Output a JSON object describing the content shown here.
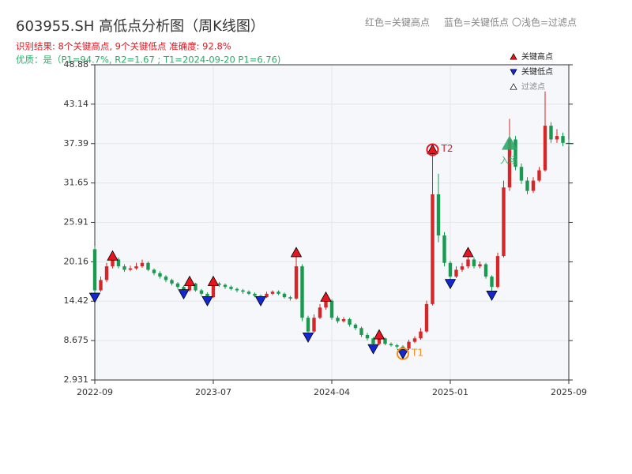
{
  "chart_data": {
    "type": "candlestick",
    "title": "603955.SH 高低点分析图（周K线图）",
    "subtitle": "识别结果: 8个关键高点, 9个关键低点  准确度: 92.8%",
    "quality": "优质：是（P1=94.7%, R2=1.67 ; T1=2024-09-20 P1=6.76)",
    "top_legend": [
      "红色=关键高点",
      "蓝色=关键低点",
      "〇浅色=过滤点"
    ],
    "categories": [
      "2022-09",
      null,
      null,
      null,
      null,
      null,
      null,
      null,
      null,
      null,
      null,
      null,
      null,
      null,
      null,
      null,
      null,
      null,
      null,
      null,
      "2023-07",
      null,
      null,
      null,
      null,
      null,
      null,
      null,
      null,
      null,
      null,
      null,
      null,
      null,
      null,
      null,
      null,
      null,
      null,
      null,
      "2024-04",
      null,
      null,
      null,
      null,
      null,
      null,
      null,
      null,
      null,
      null,
      null,
      null,
      null,
      null,
      null,
      null,
      null,
      null,
      null,
      "2025-01",
      null,
      null,
      null,
      null,
      null,
      null,
      null,
      null,
      null,
      null,
      null,
      null,
      null,
      null,
      null,
      null,
      null,
      null,
      null,
      "2025-09"
    ],
    "open": [
      22,
      16,
      17.5,
      19.5,
      20.5,
      19.5,
      19,
      19.2,
      19.5,
      20,
      19,
      18.5,
      18,
      17.5,
      17,
      16.5,
      16,
      17,
      16,
      15.5,
      15,
      17,
      16.8,
      16.5,
      16.2,
      16,
      15.8,
      15.5,
      15.2,
      15,
      15.5,
      15.8,
      15.5,
      15,
      14.8,
      19.5,
      12,
      10,
      12,
      13.5,
      14.5,
      12,
      11.5,
      11.8,
      11,
      10.5,
      9.5,
      9,
      8.2,
      9,
      8.2,
      8,
      7.8,
      7.5,
      8.5,
      9,
      10,
      14,
      30,
      24,
      20,
      18,
      19,
      19.5,
      20.5,
      19.5,
      19.8,
      18,
      16.5,
      21,
      31,
      38,
      34,
      32,
      30.5,
      32,
      33.5,
      40,
      38,
      38.5,
      37.5
    ],
    "close": [
      16,
      17.5,
      19.5,
      20.5,
      19.5,
      19,
      19.2,
      19.5,
      20,
      19,
      18.5,
      18,
      17.5,
      17,
      16.5,
      16,
      17,
      16,
      15.5,
      15,
      17,
      16.8,
      16.5,
      16.2,
      16,
      15.8,
      15.5,
      15.2,
      15,
      15.5,
      15.8,
      15.5,
      15,
      14.8,
      19.5,
      12,
      10,
      12,
      13.5,
      14.5,
      12,
      11.5,
      11.8,
      11,
      10.5,
      9.5,
      9,
      8.2,
      9,
      8.2,
      8,
      7.8,
      7.5,
      8.5,
      9,
      10,
      14,
      30,
      24,
      20,
      18,
      19,
      19.5,
      20.5,
      19.5,
      19.8,
      18,
      16.5,
      21,
      31,
      38,
      34,
      32,
      30.5,
      32,
      33.5,
      40,
      38,
      38.5,
      37.5,
      37.4
    ],
    "high": [
      22.5,
      18,
      20,
      21,
      20.8,
      19.8,
      19.6,
      20,
      20.5,
      20.2,
      19.2,
      18.8,
      18.2,
      17.7,
      17.2,
      16.7,
      17.3,
      17.1,
      16.2,
      15.7,
      17.3,
      17.2,
      17,
      16.7,
      16.4,
      16.2,
      16,
      15.7,
      15.4,
      15.8,
      16,
      16,
      15.7,
      15.2,
      21.5,
      19.8,
      12.3,
      12.5,
      14,
      15,
      14.7,
      12.3,
      12.1,
      12,
      11.2,
      10.7,
      9.8,
      9.2,
      9.5,
      9.1,
      8.4,
      8.2,
      8,
      8.8,
      9.3,
      10.5,
      14.5,
      36.5,
      33,
      24.5,
      20.3,
      19.5,
      20,
      21.5,
      20.8,
      20.2,
      20,
      18.2,
      21.5,
      32,
      41,
      38.5,
      34.5,
      32.5,
      32.5,
      34,
      45,
      40.5,
      39.5,
      39,
      38
    ],
    "low": [
      15,
      15.8,
      17.2,
      19.2,
      19.2,
      18.7,
      18.8,
      19,
      19.3,
      18.8,
      18.2,
      17.7,
      17.2,
      16.7,
      16.2,
      15.5,
      15.8,
      15.8,
      15.2,
      14.5,
      14.9,
      16.5,
      16.2,
      16,
      15.7,
      15.5,
      15.3,
      15,
      14.5,
      14.9,
      15.3,
      15.3,
      14.8,
      14.5,
      14.6,
      11.5,
      9.2,
      9.8,
      11.8,
      13.2,
      11.7,
      11.2,
      11.3,
      10.7,
      10.2,
      9.2,
      8.7,
      7.5,
      8,
      8,
      7.8,
      7.5,
      6.76,
      7.3,
      8.3,
      8.8,
      9.8,
      13.8,
      23,
      19.5,
      17,
      17.8,
      18.7,
      19.2,
      19.2,
      19.2,
      17.7,
      15.3,
      16.3,
      20.8,
      30.5,
      33.5,
      31.5,
      30,
      30.2,
      31.8,
      33.3,
      37.5,
      37.5,
      37,
      37
    ],
    "up_color": "#d62728",
    "down_color": "#1a9a50",
    "series": [
      {
        "name": "关键高点",
        "color": "#e8141e",
        "marker": "up",
        "values": [
          null,
          null,
          null,
          21,
          null,
          null,
          null,
          null,
          null,
          null,
          null,
          null,
          null,
          null,
          null,
          null,
          17.3,
          null,
          null,
          null,
          17.3,
          null,
          null,
          null,
          null,
          null,
          null,
          null,
          null,
          null,
          null,
          null,
          null,
          null,
          21.5,
          null,
          null,
          null,
          null,
          15,
          null,
          null,
          null,
          null,
          null,
          null,
          null,
          null,
          9.5,
          null,
          null,
          null,
          null,
          null,
          null,
          null,
          null,
          36.5,
          null,
          null,
          null,
          null,
          null,
          21.5,
          null,
          null,
          null,
          null,
          null,
          null,
          null,
          null,
          null,
          null,
          null,
          null,
          null,
          null,
          null,
          null,
          null
        ]
      },
      {
        "name": "关键低点",
        "color": "#1428d2",
        "marker": "down",
        "values": [
          15,
          null,
          null,
          null,
          null,
          null,
          null,
          null,
          null,
          null,
          null,
          null,
          null,
          null,
          null,
          15.5,
          null,
          null,
          null,
          14.5,
          null,
          null,
          null,
          null,
          null,
          null,
          null,
          null,
          14.5,
          null,
          null,
          null,
          null,
          null,
          null,
          null,
          9.2,
          null,
          null,
          null,
          null,
          null,
          null,
          null,
          null,
          null,
          null,
          7.5,
          null,
          null,
          null,
          null,
          6.76,
          null,
          null,
          null,
          null,
          null,
          null,
          null,
          17,
          null,
          null,
          null,
          null,
          null,
          null,
          15.3,
          null,
          null,
          null,
          null,
          null,
          null,
          null,
          null,
          null,
          null,
          null,
          null,
          null
        ]
      },
      {
        "name": "过滤点",
        "color": "#cccccc",
        "marker": "up",
        "values": [
          null,
          null,
          null,
          null,
          null,
          null,
          null,
          null,
          null,
          null,
          null,
          null,
          null,
          null,
          null,
          null,
          null,
          null,
          null,
          null,
          null,
          null,
          null,
          null,
          null,
          null,
          null,
          null,
          null,
          null,
          null,
          null,
          null,
          null,
          null,
          null,
          null,
          null,
          null,
          null,
          null,
          null,
          null,
          null,
          null,
          null,
          null,
          null,
          null,
          null,
          null,
          null,
          null,
          null,
          null,
          null,
          null,
          null,
          null,
          null,
          null,
          null,
          null,
          null,
          null,
          null,
          null,
          null,
          null,
          null,
          null,
          null,
          null,
          null,
          null,
          null,
          null,
          null,
          null,
          null,
          null
        ]
      }
    ],
    "annotations": [
      {
        "text": "T1",
        "x": 52,
        "y": 6.76,
        "color": "#f08c1e"
      },
      {
        "text": "T2",
        "x": 57,
        "y": 36.5,
        "color": "#e8141e"
      }
    ],
    "entry": {
      "text": "入场",
      "x": 70,
      "y": 37.4,
      "color": "#2eaa6a"
    },
    "ylim": [
      2.931,
      48.88
    ],
    "yticks": [
      2.931,
      8.675,
      14.42,
      20.16,
      25.91,
      31.65,
      37.39,
      43.14,
      48.88
    ],
    "grid": true
  }
}
